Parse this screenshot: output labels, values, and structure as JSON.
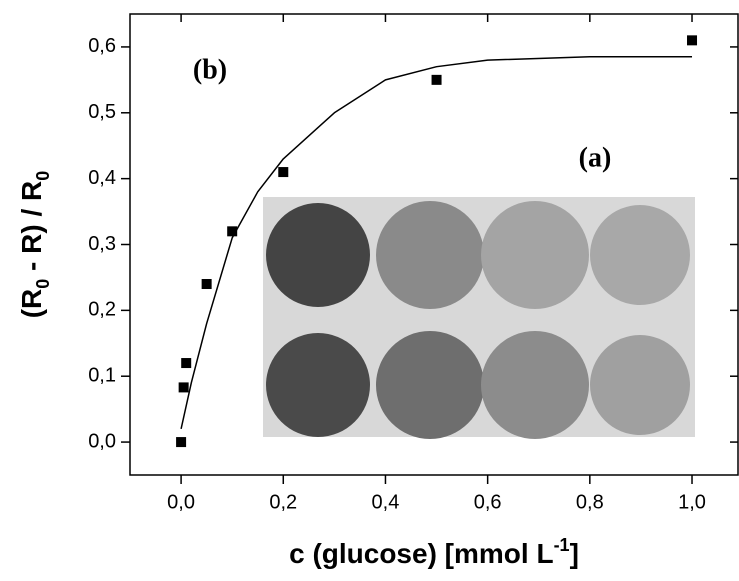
{
  "chart_data": {
    "type": "scatter",
    "xlabel_parts": [
      "c (glucose) [mmol L",
      "-1",
      "]"
    ],
    "ylabel_parts": [
      "(R",
      "0",
      " - R) / R",
      "0"
    ],
    "annotations": [
      "(b)",
      "(a)"
    ],
    "xlim": [
      -0.1,
      1.09
    ],
    "ylim": [
      -0.05,
      0.65
    ],
    "xticks": [
      {
        "value": 0,
        "label": "0,0"
      },
      {
        "value": 0.2,
        "label": "0,2"
      },
      {
        "value": 0.4,
        "label": "0,4"
      },
      {
        "value": 0.6,
        "label": "0,6"
      },
      {
        "value": 0.8,
        "label": "0,8"
      },
      {
        "value": 1,
        "label": "1,0"
      }
    ],
    "yticks": [
      {
        "value": 0,
        "label": "0,0"
      },
      {
        "value": 0.1,
        "label": "0,1"
      },
      {
        "value": 0.2,
        "label": "0,2"
      },
      {
        "value": 0.3,
        "label": "0,3"
      },
      {
        "value": 0.4,
        "label": "0,4"
      },
      {
        "value": 0.5,
        "label": "0,5"
      },
      {
        "value": 0.6,
        "label": "0,6"
      }
    ],
    "series": [
      {
        "color": "#000000",
        "marker": "square",
        "x": [
          0,
          0.005,
          0.01,
          0.05,
          0.1,
          0.2,
          0.5,
          1.0
        ],
        "values": [
          0,
          0.083,
          0.12,
          0.24,
          0.32,
          0.41,
          0.55,
          0.61
        ]
      },
      {
        "color": "#000000",
        "marker": "line",
        "x": [
          0,
          0.02,
          0.05,
          0.1,
          0.15,
          0.2,
          0.3,
          0.4,
          0.5,
          0.6,
          0.8,
          1.0
        ],
        "values": [
          0.02,
          0.09,
          0.18,
          0.31,
          0.38,
          0.43,
          0.5,
          0.55,
          0.57,
          0.58,
          0.585,
          0.585
        ]
      }
    ]
  }
}
